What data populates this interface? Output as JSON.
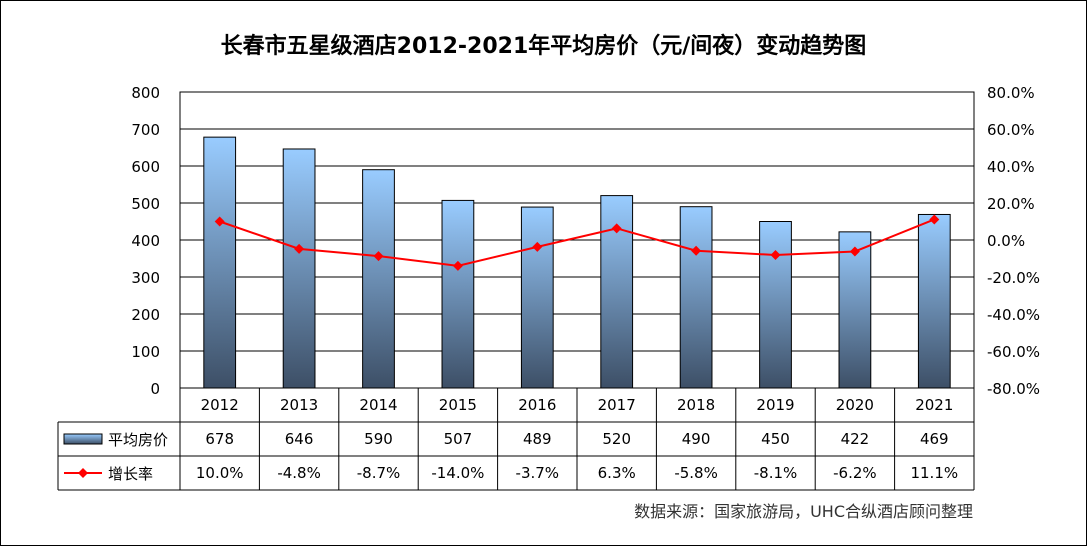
{
  "chart_data": {
    "type": "bar",
    "title": "长春市五星级酒店2012-2021年平均房价（元/间夜）变动趋势图",
    "categories": [
      "2012",
      "2013",
      "2014",
      "2015",
      "2016",
      "2017",
      "2018",
      "2019",
      "2020",
      "2021"
    ],
    "series": [
      {
        "name": "平均房价",
        "type": "bar",
        "axis": "left",
        "values": [
          678,
          646,
          590,
          507,
          489,
          520,
          490,
          450,
          422,
          469
        ],
        "labels": [
          "678",
          "646",
          "590",
          "507",
          "489",
          "520",
          "490",
          "450",
          "422",
          "469"
        ]
      },
      {
        "name": "增长率",
        "type": "line",
        "axis": "right",
        "values": [
          10.0,
          -4.8,
          -8.7,
          -14.0,
          -3.7,
          6.3,
          -5.8,
          -8.1,
          -6.2,
          11.1
        ],
        "labels": [
          "10.0%",
          "-4.8%",
          "-8.7%",
          "-14.0%",
          "-3.7%",
          "6.3%",
          "-5.8%",
          "-8.1%",
          "-6.2%",
          "11.1%"
        ]
      }
    ],
    "ylim_left": [
      0,
      800
    ],
    "left_ticks": [
      "0",
      "100",
      "200",
      "300",
      "400",
      "500",
      "600",
      "700",
      "800"
    ],
    "ylim_right": [
      -80,
      80
    ],
    "right_ticks": [
      "-80.0%",
      "-60.0%",
      "-40.0%",
      "-20.0%",
      "0.0%",
      "20.0%",
      "40.0%",
      "60.0%",
      "80.0%"
    ],
    "grid": true,
    "data_table": true,
    "colors": {
      "bar_top": "#99ccff",
      "bar_bottom": "#3d4f66",
      "line": "#ff0000"
    }
  },
  "source": "数据来源：国家旅游局，UHC合纵酒店顾问整理"
}
